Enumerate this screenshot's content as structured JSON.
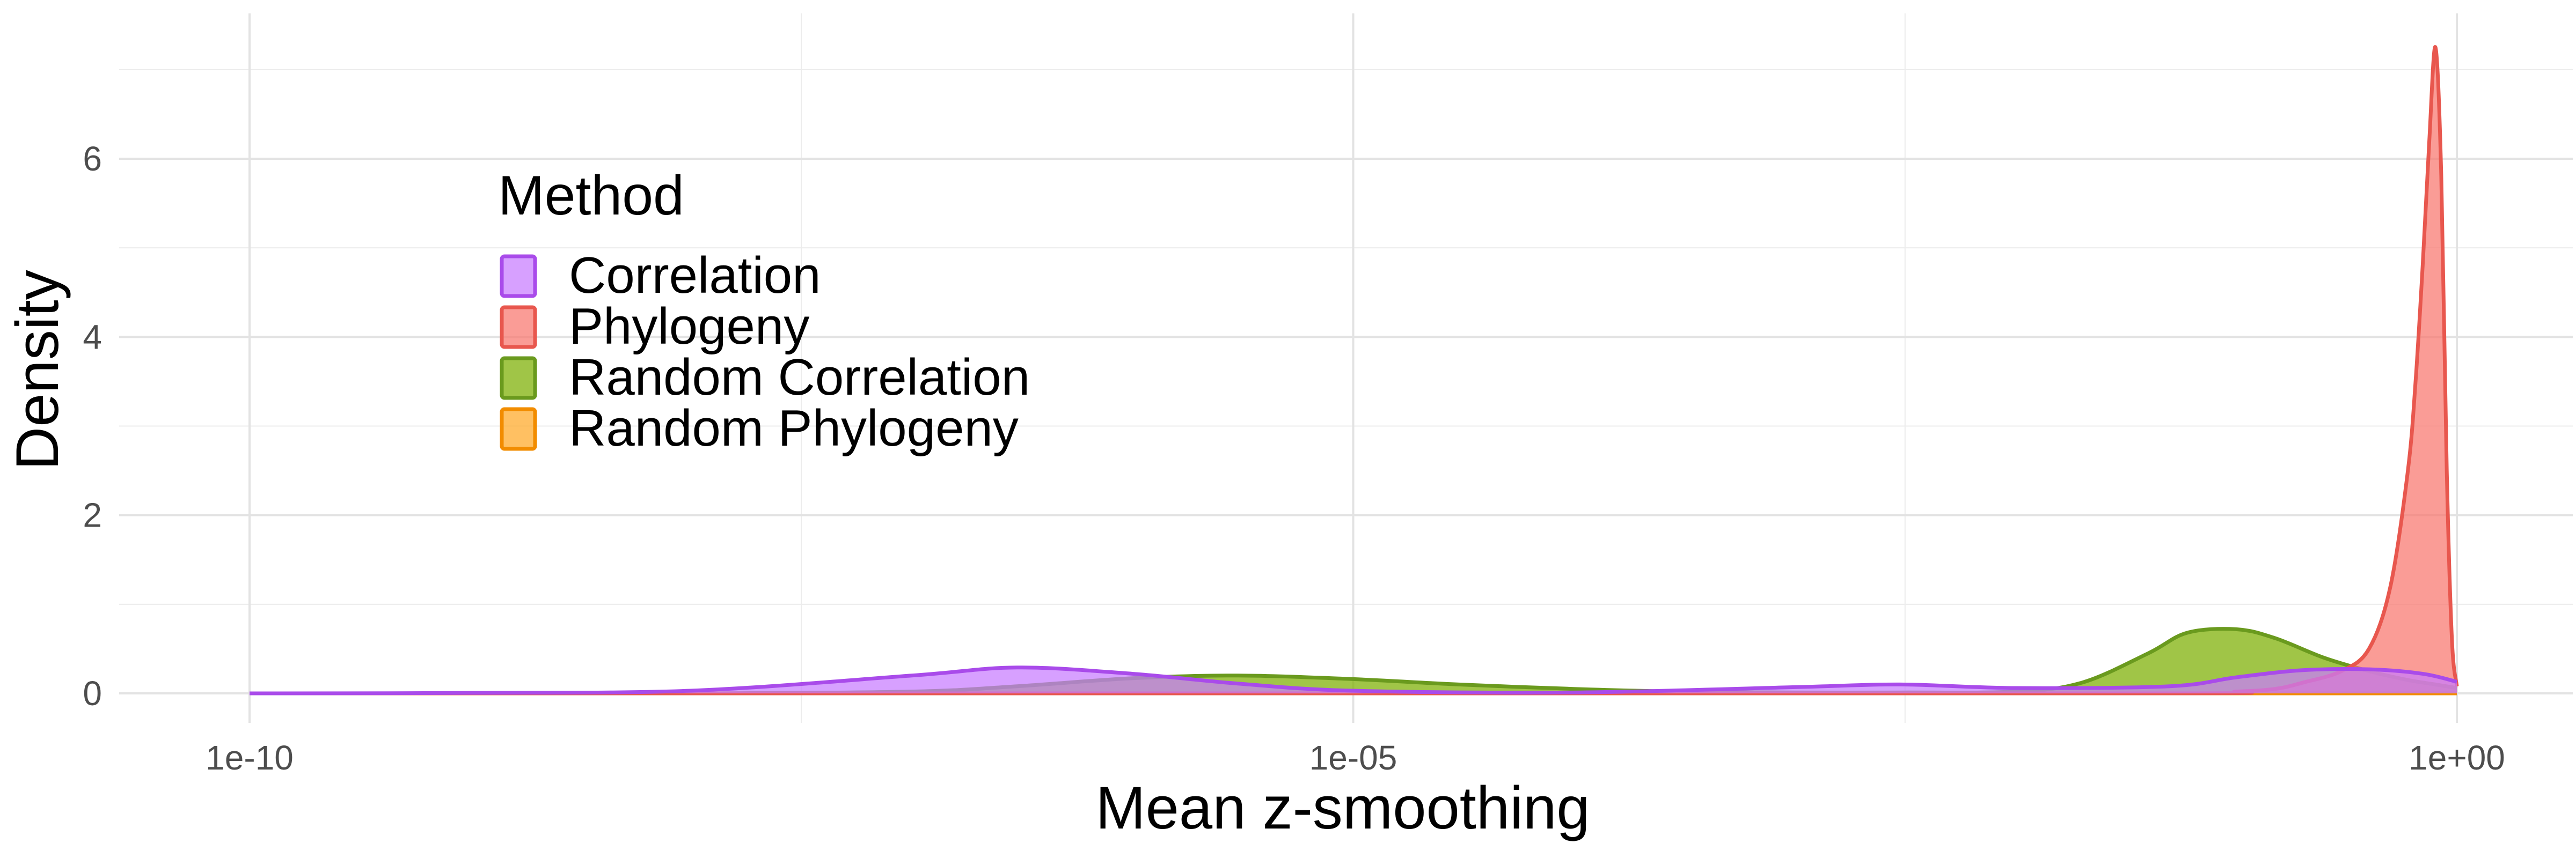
{
  "chart_data": {
    "type": "area",
    "subtype": "density",
    "xlabel": "Mean z-smoothing",
    "ylabel": "Density",
    "x_scale": "log10",
    "x_ticks": [
      1e-10,
      1e-05,
      1
    ],
    "x_tick_labels": [
      "1e-10",
      "1e-05",
      "1e+00"
    ],
    "xlim": [
      1e-10,
      1
    ],
    "y_ticks": [
      0,
      2,
      4,
      6
    ],
    "y_tick_labels": [
      "0",
      "2",
      "4",
      "6"
    ],
    "ylim": [
      0,
      7.3
    ],
    "grid": true,
    "legend": {
      "title": "Method",
      "placement": "top-left inside plot",
      "entries": [
        "Correlation",
        "Phylogeny",
        "Random Correlation",
        "Random Phylogeny"
      ]
    },
    "series": [
      {
        "name": "Random Phylogeny",
        "fill": "#FFA726",
        "stroke": "#F28C00",
        "x": [
          1e-10,
          1e-09,
          1e-08,
          1e-07,
          1e-06,
          1e-05,
          0.0001,
          0.001,
          0.01,
          0.05,
          0.1,
          0.2,
          0.3,
          0.4,
          0.5,
          0.6,
          0.7,
          0.8,
          0.9,
          1
        ],
        "y": [
          0,
          0,
          0,
          0,
          0,
          0,
          0,
          0,
          0,
          0,
          0,
          0,
          0,
          0,
          0,
          0,
          0,
          0,
          0,
          0
        ]
      },
      {
        "name": "Random Correlation",
        "fill": "#7CAE00",
        "stroke": "#6A9A1E",
        "x": [
          1e-10,
          1e-09,
          1e-08,
          1e-07,
          3e-07,
          1e-06,
          3e-06,
          1e-05,
          3e-05,
          0.0001,
          0.0003,
          0.001,
          0.003,
          0.01,
          0.02,
          0.04,
          0.06,
          0.1,
          0.15,
          0.25,
          0.4,
          0.6,
          0.8,
          1
        ],
        "y": [
          0,
          0,
          0,
          0.02,
          0.08,
          0.17,
          0.2,
          0.16,
          0.1,
          0.05,
          0.02,
          0.01,
          0.01,
          0.02,
          0.12,
          0.45,
          0.68,
          0.72,
          0.62,
          0.4,
          0.25,
          0.15,
          0.1,
          0.06
        ]
      },
      {
        "name": "Phylogeny",
        "fill": "#F8766D",
        "stroke": "#E8574E",
        "x": [
          1e-10,
          1e-05,
          0.05,
          0.1,
          0.15,
          0.2,
          0.3,
          0.4,
          0.5,
          0.6,
          0.65,
          0.7,
          0.75,
          0.8,
          0.85,
          0.9,
          0.95,
          1
        ],
        "y": [
          0,
          0,
          0,
          0.02,
          0.05,
          0.12,
          0.25,
          0.5,
          1.2,
          2.5,
          3.5,
          4.8,
          6.2,
          7.25,
          5.8,
          2.5,
          0.6,
          0.08
        ]
      },
      {
        "name": "Correlation",
        "fill": "#C77CFF",
        "stroke": "#A94BEA",
        "x": [
          1e-10,
          1e-09,
          1e-08,
          1e-07,
          3e-07,
          1e-06,
          3e-06,
          1e-05,
          0.0001,
          0.001,
          0.003,
          0.01,
          0.05,
          0.1,
          0.2,
          0.4,
          0.7,
          1
        ],
        "y": [
          0,
          0.005,
          0.03,
          0.2,
          0.29,
          0.22,
          0.11,
          0.03,
          0.01,
          0.07,
          0.1,
          0.06,
          0.08,
          0.18,
          0.26,
          0.27,
          0.22,
          0.13
        ]
      }
    ]
  }
}
